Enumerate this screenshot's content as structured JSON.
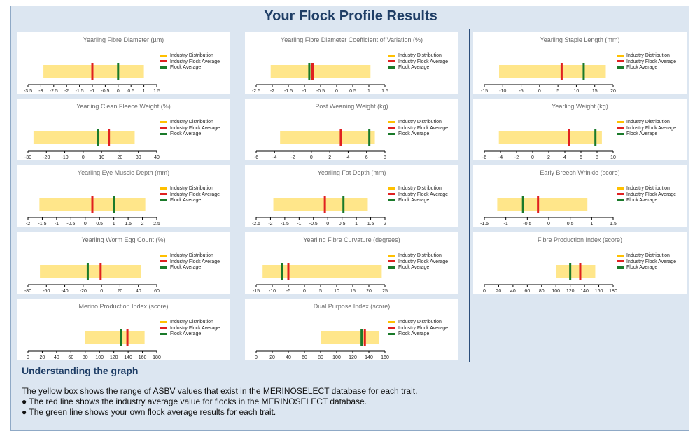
{
  "page_title": "Your Flock Profile Results",
  "legend": {
    "industry_distribution": "Industry Distribution",
    "industry_flock_average": "Industry Flock Average",
    "flock_average": "Flock Average"
  },
  "colors": {
    "distribution": "#ffe68a",
    "industry_average": "#e02020",
    "flock_average": "#1a7a2a",
    "legend_distribution": "#ffc000"
  },
  "chart_data": [
    {
      "type": "range",
      "title": "Yearling Fibre Diameter (µm)",
      "xlim": [
        -3.5,
        1.5
      ],
      "ticks": [
        "-3.5",
        "-3",
        "-2.5",
        "-2",
        "-1.5",
        "-1",
        "-0.5",
        "0",
        "0.5",
        "1",
        "1.5"
      ],
      "distribution": [
        -2.9,
        1.0
      ],
      "industry_average": -1.0,
      "flock_average": 0.0
    },
    {
      "type": "range",
      "title": "Yearling Fibre Diameter Coefficient of Variation (%)",
      "xlim": [
        -2.5,
        1.5
      ],
      "ticks": [
        "-2.5",
        "-2",
        "-1.5",
        "-1",
        "-0.5",
        "0",
        "0.5",
        "1",
        "1.5"
      ],
      "distribution": [
        -2.05,
        1.05
      ],
      "industry_average": -0.75,
      "flock_average": -0.85
    },
    {
      "type": "range",
      "title": "Yearling Staple Length (mm)",
      "xlim": [
        -15,
        20
      ],
      "ticks": [
        "-15",
        "-10",
        "-5",
        "0",
        "5",
        "10",
        "15",
        "20"
      ],
      "distribution": [
        -11,
        18
      ],
      "industry_average": 6,
      "flock_average": 12
    },
    {
      "type": "range",
      "title": "Yearling Clean Fleece Weight (%)",
      "xlim": [
        -30,
        40
      ],
      "ticks": [
        "-30",
        "-20",
        "-10",
        "0",
        "10",
        "20",
        "30",
        "40"
      ],
      "distribution": [
        -27,
        28
      ],
      "industry_average": 14,
      "flock_average": 8
    },
    {
      "type": "range",
      "title": "Post Weaning Weight (kg)",
      "xlim": [
        -6,
        8
      ],
      "ticks": [
        "-6",
        "-4",
        "-2",
        "0",
        "2",
        "4",
        "6",
        "8"
      ],
      "distribution": [
        -3.4,
        6.9
      ],
      "industry_average": 3.2,
      "flock_average": 6.3
    },
    {
      "type": "range",
      "title": "Yearling Weight (kg)",
      "xlim": [
        -6,
        10
      ],
      "ticks": [
        "-6",
        "-4",
        "-2",
        "0",
        "2",
        "4",
        "6",
        "8",
        "10"
      ],
      "distribution": [
        -4.2,
        8.6
      ],
      "industry_average": 4.5,
      "flock_average": 7.8
    },
    {
      "type": "range",
      "title": "Yearling Eye Muscle Depth (mm)",
      "xlim": [
        -2,
        2.5
      ],
      "ticks": [
        "-2",
        "-1.5",
        "-1",
        "-0.5",
        "0",
        "0.5",
        "1",
        "1.5",
        "2",
        "2.5"
      ],
      "distribution": [
        -1.6,
        2.1
      ],
      "industry_average": 0.25,
      "flock_average": 1.0
    },
    {
      "type": "range",
      "title": "Yearling Fat Depth (mm)",
      "xlim": [
        -2.5,
        2
      ],
      "ticks": [
        "-2.5",
        "-2",
        "-1.5",
        "-1",
        "-0.5",
        "0",
        "0.5",
        "1",
        "1.5",
        "2"
      ],
      "distribution": [
        -1.9,
        1.4
      ],
      "industry_average": -0.1,
      "flock_average": 0.55
    },
    {
      "type": "range",
      "title": "Early Breech Wrinkle (score)",
      "xlim": [
        -1.5,
        1.5
      ],
      "ticks": [
        "-1.5",
        "-1",
        "-0.5",
        "0",
        "0.5",
        "1",
        "1.5"
      ],
      "distribution": [
        -1.2,
        0.9
      ],
      "industry_average": -0.25,
      "flock_average": -0.6
    },
    {
      "type": "range",
      "title": "Yearling Worm Egg Count (%)",
      "xlim": [
        -80,
        60
      ],
      "ticks": [
        "-80",
        "-60",
        "-40",
        "-20",
        "0",
        "20",
        "40",
        "60"
      ],
      "distribution": [
        -67,
        43
      ],
      "industry_average": -1,
      "flock_average": -15
    },
    {
      "type": "range",
      "title": "Yearling Fibre Curvature (degrees)",
      "xlim": [
        -15,
        25
      ],
      "ticks": [
        "-15",
        "-10",
        "-5",
        "0",
        "5",
        "10",
        "15",
        "20",
        "25"
      ],
      "distribution": [
        -13,
        24
      ],
      "industry_average": -5,
      "flock_average": -7
    },
    {
      "type": "range",
      "title": "Fibre Production Index (score)",
      "xlim": [
        0,
        180
      ],
      "ticks": [
        "0",
        "20",
        "40",
        "60",
        "80",
        "100",
        "120",
        "140",
        "160",
        "180"
      ],
      "distribution": [
        100,
        155
      ],
      "industry_average": 134,
      "flock_average": 120
    },
    {
      "type": "range",
      "title": "Merino Production Index (score)",
      "xlim": [
        0,
        180
      ],
      "ticks": [
        "0",
        "20",
        "40",
        "60",
        "80",
        "100",
        "120",
        "140",
        "160",
        "180"
      ],
      "distribution": [
        80,
        163
      ],
      "industry_average": 139,
      "flock_average": 130
    },
    {
      "type": "range",
      "title": "Dual Purpose Index (score)",
      "xlim": [
        0,
        160
      ],
      "ticks": [
        "0",
        "20",
        "40",
        "60",
        "80",
        "100",
        "120",
        "140",
        "160"
      ],
      "distribution": [
        80,
        153
      ],
      "industry_average": 135,
      "flock_average": 131
    }
  ],
  "understanding": {
    "heading": "Understanding the graph",
    "lines": [
      "The yellow box shows the range of ASBV values that exist in the MERINOSELECT database for each trait.",
      "● The red line shows the industry average value for flocks in the MERINOSELECT database.",
      "● The green line shows your own flock average results for each trait."
    ]
  }
}
